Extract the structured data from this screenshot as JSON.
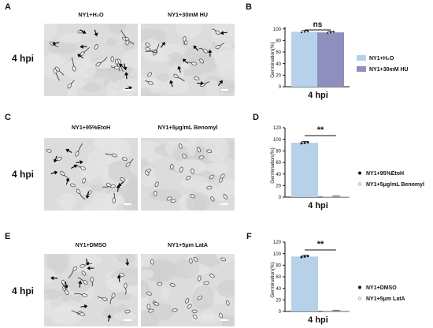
{
  "rows": [
    {
      "image_panel": "A",
      "hpi": "4 hpi",
      "images": [
        "NY1+H₂O",
        "NY1+30mM HU"
      ]
    },
    {
      "image_panel": "C",
      "hpi": "4 hpi",
      "images": [
        "NY1+95%EtoH",
        "NY1+5μg/mL Benomyl"
      ]
    },
    {
      "image_panel": "E",
      "hpi": "4 hpi",
      "images": [
        "NY1+DMSO",
        "NY1+5μm LatA"
      ]
    }
  ],
  "charts": [
    {
      "panel": "B",
      "legend": [
        "NY1+H₂O",
        "NY1+30mM HU"
      ]
    },
    {
      "panel": "D",
      "legend": [
        "NY1+95%EtoH",
        "NY1+5μg/mL Benomyl"
      ]
    },
    {
      "panel": "F",
      "legend": [
        "NY1+DMSO",
        "NY1+5μm LatA"
      ]
    }
  ],
  "colors": {
    "bar_light_blue": "#b7d1ea",
    "bar_purple": "#8e8fbd",
    "sig_line": "#111111",
    "micrograph_bg": "#dcdcdc"
  },
  "chart_data": [
    {
      "type": "bar",
      "panel": "B",
      "categories": [
        "4 hpi"
      ],
      "series": [
        {
          "name": "NY1+H₂O",
          "values": [
            95
          ],
          "points": [
            94,
            95,
            96
          ]
        },
        {
          "name": "NY1+30mM HU",
          "values": [
            94
          ],
          "points": [
            93,
            94,
            95
          ]
        }
      ],
      "ylabel": "Germination(%)",
      "yticks": [
        "0",
        "20",
        "40",
        "60",
        "80",
        "100"
      ],
      "ylim": [
        0,
        120
      ],
      "significance": "ns",
      "legend_position": "right",
      "grid": false
    },
    {
      "type": "bar",
      "panel": "D",
      "categories": [
        "4 hpi"
      ],
      "series": [
        {
          "name": "NY1+95%EtoH",
          "values": [
            94
          ],
          "points": [
            93,
            94,
            95
          ]
        },
        {
          "name": "NY1+5μg/mL Benomyl",
          "values": [
            0
          ],
          "points": [
            0,
            0,
            0
          ]
        }
      ],
      "ylabel": "Germination(%)",
      "yticks": [
        "0",
        "20",
        "40",
        "60",
        "80",
        "100",
        "120"
      ],
      "ylim": [
        0,
        120
      ],
      "significance": "**",
      "legend_position": "right",
      "grid": false
    },
    {
      "type": "bar",
      "panel": "F",
      "categories": [
        "4 hpi"
      ],
      "series": [
        {
          "name": "NY1+DMSO",
          "values": [
            95
          ],
          "points": [
            94,
            95,
            96
          ]
        },
        {
          "name": "NY1+5μm LatA",
          "values": [
            0
          ],
          "points": [
            0,
            0,
            0
          ]
        }
      ],
      "ylabel": "Germination(%)",
      "yticks": [
        "0",
        "20",
        "40",
        "60",
        "80",
        "100",
        "120"
      ],
      "ylim": [
        0,
        120
      ],
      "significance": "**",
      "legend_position": "right",
      "grid": false
    }
  ]
}
